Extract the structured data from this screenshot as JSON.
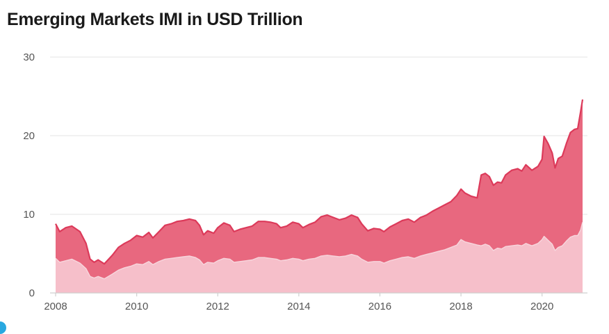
{
  "chart_data": {
    "type": "area",
    "title": "Emerging Markets IMI in USD Trillion",
    "xlabel": "",
    "ylabel": "",
    "ylim": [
      0,
      30
    ],
    "xlim": [
      2008,
      2021
    ],
    "y_ticks": [
      "0",
      "10",
      "20",
      "30"
    ],
    "x_ticks": [
      "2008",
      "2010",
      "2012",
      "2014",
      "2016",
      "2018",
      "2020"
    ],
    "grid": true,
    "stacked": false,
    "colors": {
      "total": "#e8687f",
      "total_line": "#dc3a5a",
      "lower": "#f6bfca",
      "lower_line": "#f7d6dd"
    },
    "series": [
      {
        "role": "total",
        "points": [
          [
            2008.0,
            8.8
          ],
          [
            2008.1,
            7.8
          ],
          [
            2008.25,
            8.3
          ],
          [
            2008.4,
            8.5
          ],
          [
            2008.6,
            7.8
          ],
          [
            2008.75,
            6.3
          ],
          [
            2008.85,
            4.3
          ],
          [
            2008.95,
            3.9
          ],
          [
            2009.05,
            4.2
          ],
          [
            2009.2,
            3.7
          ],
          [
            2009.4,
            4.8
          ],
          [
            2009.55,
            5.8
          ],
          [
            2009.7,
            6.3
          ],
          [
            2009.85,
            6.7
          ],
          [
            2010.0,
            7.3
          ],
          [
            2010.15,
            7.1
          ],
          [
            2010.3,
            7.7
          ],
          [
            2010.4,
            7.0
          ],
          [
            2010.55,
            7.8
          ],
          [
            2010.7,
            8.6
          ],
          [
            2010.85,
            8.8
          ],
          [
            2011.0,
            9.1
          ],
          [
            2011.15,
            9.2
          ],
          [
            2011.3,
            9.4
          ],
          [
            2011.45,
            9.2
          ],
          [
            2011.55,
            8.6
          ],
          [
            2011.65,
            7.4
          ],
          [
            2011.75,
            7.9
          ],
          [
            2011.9,
            7.6
          ],
          [
            2012.0,
            8.3
          ],
          [
            2012.15,
            8.9
          ],
          [
            2012.3,
            8.6
          ],
          [
            2012.4,
            7.8
          ],
          [
            2012.55,
            8.1
          ],
          [
            2012.7,
            8.3
          ],
          [
            2012.85,
            8.5
          ],
          [
            2013.0,
            9.1
          ],
          [
            2013.15,
            9.1
          ],
          [
            2013.3,
            9.0
          ],
          [
            2013.45,
            8.8
          ],
          [
            2013.55,
            8.3
          ],
          [
            2013.7,
            8.5
          ],
          [
            2013.85,
            9.0
          ],
          [
            2014.0,
            8.8
          ],
          [
            2014.1,
            8.3
          ],
          [
            2014.25,
            8.7
          ],
          [
            2014.4,
            9.0
          ],
          [
            2014.55,
            9.7
          ],
          [
            2014.7,
            9.9
          ],
          [
            2014.85,
            9.6
          ],
          [
            2015.0,
            9.3
          ],
          [
            2015.15,
            9.5
          ],
          [
            2015.3,
            9.9
          ],
          [
            2015.45,
            9.6
          ],
          [
            2015.55,
            8.8
          ],
          [
            2015.7,
            7.9
          ],
          [
            2015.85,
            8.2
          ],
          [
            2016.0,
            8.1
          ],
          [
            2016.1,
            7.8
          ],
          [
            2016.25,
            8.4
          ],
          [
            2016.4,
            8.8
          ],
          [
            2016.55,
            9.2
          ],
          [
            2016.7,
            9.4
          ],
          [
            2016.85,
            9.0
          ],
          [
            2017.0,
            9.6
          ],
          [
            2017.15,
            9.9
          ],
          [
            2017.3,
            10.4
          ],
          [
            2017.45,
            10.8
          ],
          [
            2017.6,
            11.2
          ],
          [
            2017.75,
            11.6
          ],
          [
            2017.9,
            12.4
          ],
          [
            2018.0,
            13.2
          ],
          [
            2018.1,
            12.7
          ],
          [
            2018.25,
            12.3
          ],
          [
            2018.4,
            12.1
          ],
          [
            2018.5,
            15.0
          ],
          [
            2018.6,
            15.2
          ],
          [
            2018.7,
            14.8
          ],
          [
            2018.8,
            13.7
          ],
          [
            2018.9,
            14.1
          ],
          [
            2019.0,
            14.0
          ],
          [
            2019.1,
            15.0
          ],
          [
            2019.25,
            15.6
          ],
          [
            2019.4,
            15.8
          ],
          [
            2019.5,
            15.5
          ],
          [
            2019.6,
            16.3
          ],
          [
            2019.75,
            15.6
          ],
          [
            2019.9,
            16.1
          ],
          [
            2020.0,
            17.0
          ],
          [
            2020.05,
            19.9
          ],
          [
            2020.15,
            19.0
          ],
          [
            2020.25,
            17.8
          ],
          [
            2020.32,
            15.9
          ],
          [
            2020.4,
            17.1
          ],
          [
            2020.5,
            17.4
          ],
          [
            2020.6,
            19.0
          ],
          [
            2020.7,
            20.4
          ],
          [
            2020.8,
            20.8
          ],
          [
            2020.88,
            20.9
          ],
          [
            2020.95,
            23.0
          ],
          [
            2021.0,
            24.6
          ]
        ]
      },
      {
        "role": "lower",
        "points": [
          [
            2008.0,
            4.4
          ],
          [
            2008.1,
            3.9
          ],
          [
            2008.25,
            4.1
          ],
          [
            2008.4,
            4.3
          ],
          [
            2008.6,
            3.8
          ],
          [
            2008.75,
            3.1
          ],
          [
            2008.85,
            2.1
          ],
          [
            2008.95,
            1.9
          ],
          [
            2009.05,
            2.1
          ],
          [
            2009.2,
            1.8
          ],
          [
            2009.4,
            2.4
          ],
          [
            2009.55,
            2.9
          ],
          [
            2009.7,
            3.2
          ],
          [
            2009.85,
            3.4
          ],
          [
            2010.0,
            3.7
          ],
          [
            2010.15,
            3.6
          ],
          [
            2010.3,
            4.0
          ],
          [
            2010.4,
            3.6
          ],
          [
            2010.55,
            4.0
          ],
          [
            2010.7,
            4.3
          ],
          [
            2010.85,
            4.4
          ],
          [
            2011.0,
            4.5
          ],
          [
            2011.15,
            4.6
          ],
          [
            2011.3,
            4.7
          ],
          [
            2011.45,
            4.5
          ],
          [
            2011.55,
            4.2
          ],
          [
            2011.65,
            3.6
          ],
          [
            2011.75,
            3.9
          ],
          [
            2011.9,
            3.8
          ],
          [
            2012.0,
            4.1
          ],
          [
            2012.15,
            4.4
          ],
          [
            2012.3,
            4.3
          ],
          [
            2012.4,
            3.9
          ],
          [
            2012.55,
            4.0
          ],
          [
            2012.7,
            4.1
          ],
          [
            2012.85,
            4.2
          ],
          [
            2013.0,
            4.5
          ],
          [
            2013.15,
            4.5
          ],
          [
            2013.3,
            4.4
          ],
          [
            2013.45,
            4.3
          ],
          [
            2013.55,
            4.1
          ],
          [
            2013.7,
            4.2
          ],
          [
            2013.85,
            4.4
          ],
          [
            2014.0,
            4.3
          ],
          [
            2014.1,
            4.1
          ],
          [
            2014.25,
            4.3
          ],
          [
            2014.4,
            4.4
          ],
          [
            2014.55,
            4.7
          ],
          [
            2014.7,
            4.8
          ],
          [
            2014.85,
            4.7
          ],
          [
            2015.0,
            4.6
          ],
          [
            2015.15,
            4.7
          ],
          [
            2015.3,
            4.9
          ],
          [
            2015.45,
            4.7
          ],
          [
            2015.55,
            4.3
          ],
          [
            2015.7,
            3.9
          ],
          [
            2015.85,
            4.0
          ],
          [
            2016.0,
            4.0
          ],
          [
            2016.1,
            3.8
          ],
          [
            2016.25,
            4.1
          ],
          [
            2016.4,
            4.3
          ],
          [
            2016.55,
            4.5
          ],
          [
            2016.7,
            4.6
          ],
          [
            2016.85,
            4.4
          ],
          [
            2017.0,
            4.7
          ],
          [
            2017.15,
            4.9
          ],
          [
            2017.3,
            5.1
          ],
          [
            2017.45,
            5.3
          ],
          [
            2017.6,
            5.5
          ],
          [
            2017.75,
            5.8
          ],
          [
            2017.9,
            6.1
          ],
          [
            2018.0,
            6.8
          ],
          [
            2018.1,
            6.5
          ],
          [
            2018.25,
            6.3
          ],
          [
            2018.4,
            6.1
          ],
          [
            2018.5,
            6.0
          ],
          [
            2018.6,
            6.2
          ],
          [
            2018.7,
            6.0
          ],
          [
            2018.8,
            5.4
          ],
          [
            2018.9,
            5.7
          ],
          [
            2019.0,
            5.6
          ],
          [
            2019.1,
            5.9
          ],
          [
            2019.25,
            6.0
          ],
          [
            2019.4,
            6.1
          ],
          [
            2019.5,
            6.0
          ],
          [
            2019.6,
            6.3
          ],
          [
            2019.75,
            6.0
          ],
          [
            2019.9,
            6.3
          ],
          [
            2020.0,
            6.8
          ],
          [
            2020.05,
            7.2
          ],
          [
            2020.15,
            6.7
          ],
          [
            2020.25,
            6.2
          ],
          [
            2020.32,
            5.4
          ],
          [
            2020.4,
            5.8
          ],
          [
            2020.5,
            6.0
          ],
          [
            2020.6,
            6.6
          ],
          [
            2020.7,
            7.1
          ],
          [
            2020.8,
            7.3
          ],
          [
            2020.88,
            7.3
          ],
          [
            2020.95,
            8.0
          ],
          [
            2021.0,
            9.0
          ]
        ]
      }
    ]
  }
}
